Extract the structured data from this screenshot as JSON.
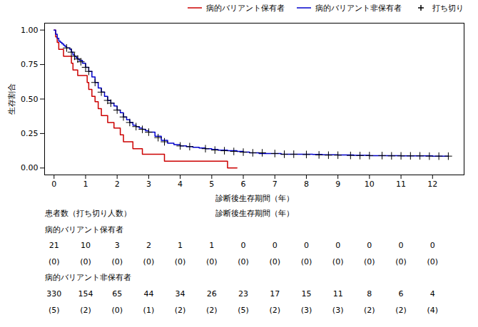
{
  "chart_data": {
    "type": "line",
    "xlabel": "診断後生存期間（年）",
    "ylabel": "生存割合",
    "xlim": [
      -0.3,
      13
    ],
    "ylim": [
      -0.05,
      1.05
    ],
    "xticks": [
      0,
      1,
      2,
      3,
      4,
      5,
      6,
      7,
      8,
      9,
      10,
      11,
      12
    ],
    "yticks": [
      {
        "value": 0.0,
        "label": "0.00"
      },
      {
        "value": 0.25,
        "label": "0.25"
      },
      {
        "value": 0.5,
        "label": "0.50"
      },
      {
        "value": 0.75,
        "label": "0.75"
      },
      {
        "value": 1.0,
        "label": "1.00"
      }
    ],
    "grid": false,
    "legend": "upper right",
    "series": [
      {
        "name": "病的バリアント保有者",
        "type": "line",
        "line_style": "step",
        "color": "#CC0000",
        "x": [
          0,
          0.05,
          0.1,
          0.15,
          0.2,
          0.25,
          0.3,
          0.35,
          0.4,
          0.5,
          0.55,
          0.6,
          0.65,
          0.75,
          0.8,
          0.9,
          1.0,
          1.05,
          1.1,
          1.2,
          1.3,
          1.4,
          1.5,
          1.6,
          1.7,
          1.8,
          1.9,
          2.0,
          2.1,
          2.2,
          2.5,
          2.8,
          3.0,
          3.2,
          3.4,
          3.5,
          4.0,
          4.5,
          5.0,
          5.5,
          5.8
        ],
        "values": [
          1.0,
          0.95,
          0.91,
          0.86,
          0.86,
          0.86,
          0.81,
          0.81,
          0.81,
          0.81,
          0.76,
          0.71,
          0.71,
          0.67,
          0.67,
          0.67,
          0.67,
          0.62,
          0.57,
          0.52,
          0.48,
          0.43,
          0.38,
          0.38,
          0.33,
          0.33,
          0.29,
          0.29,
          0.24,
          0.19,
          0.14,
          0.1,
          0.1,
          0.1,
          0.1,
          0.05,
          0.05,
          0.05,
          0.05,
          0.0,
          0.0
        ]
      },
      {
        "name": "病的バリアント非保有者",
        "type": "line",
        "line_style": "step",
        "color": "#0000CC",
        "x": [
          0,
          0.05,
          0.1,
          0.15,
          0.2,
          0.25,
          0.3,
          0.35,
          0.4,
          0.45,
          0.5,
          0.55,
          0.6,
          0.65,
          0.7,
          0.75,
          0.8,
          0.9,
          1.0,
          1.1,
          1.2,
          1.3,
          1.4,
          1.5,
          1.6,
          1.7,
          1.8,
          1.9,
          2.0,
          2.1,
          2.2,
          2.3,
          2.4,
          2.5,
          2.6,
          2.7,
          2.8,
          2.9,
          3.0,
          3.2,
          3.4,
          3.6,
          3.8,
          4.0,
          4.2,
          4.4,
          4.6,
          4.8,
          5.0,
          5.2,
          5.5,
          5.8,
          6.0,
          6.2,
          6.5,
          7.0,
          7.2,
          7.5,
          8.0,
          8.2,
          8.5,
          9.0,
          9.5,
          10.0,
          10.5,
          11.0,
          11.5,
          12.0,
          12.5
        ],
        "values": [
          1.0,
          0.97,
          0.94,
          0.92,
          0.91,
          0.9,
          0.89,
          0.88,
          0.87,
          0.87,
          0.86,
          0.84,
          0.82,
          0.81,
          0.8,
          0.79,
          0.78,
          0.76,
          0.73,
          0.7,
          0.66,
          0.62,
          0.58,
          0.55,
          0.52,
          0.49,
          0.47,
          0.45,
          0.42,
          0.4,
          0.37,
          0.35,
          0.33,
          0.31,
          0.3,
          0.29,
          0.28,
          0.27,
          0.26,
          0.23,
          0.2,
          0.18,
          0.17,
          0.16,
          0.155,
          0.15,
          0.145,
          0.14,
          0.135,
          0.13,
          0.125,
          0.12,
          0.115,
          0.11,
          0.105,
          0.105,
          0.1,
          0.1,
          0.1,
          0.098,
          0.096,
          0.094,
          0.092,
          0.09,
          0.09,
          0.088,
          0.088,
          0.086,
          0.086
        ]
      },
      {
        "name": "打ち切り",
        "type": "scatter",
        "marker": "+",
        "color": "#000000",
        "x": [
          0.4,
          0.55,
          0.65,
          0.75,
          0.85,
          1.0,
          1.1,
          1.3,
          1.5,
          1.7,
          1.8,
          2.0,
          2.2,
          2.4,
          2.6,
          2.8,
          3.0,
          3.3,
          3.5,
          4.0,
          4.3,
          4.8,
          5.1,
          5.4,
          5.7,
          6.0,
          6.3,
          6.6,
          7.0,
          7.3,
          7.6,
          8.0,
          8.4,
          8.7,
          9.0,
          9.4,
          9.7,
          10.0,
          10.4,
          10.7,
          11.0,
          11.3,
          11.6,
          11.9,
          12.2,
          12.5
        ],
        "values": [
          0.87,
          0.84,
          0.81,
          0.79,
          0.77,
          0.73,
          0.7,
          0.62,
          0.55,
          0.49,
          0.47,
          0.42,
          0.37,
          0.33,
          0.3,
          0.28,
          0.26,
          0.22,
          0.19,
          0.16,
          0.155,
          0.14,
          0.13,
          0.125,
          0.12,
          0.115,
          0.11,
          0.11,
          0.105,
          0.1,
          0.1,
          0.098,
          0.095,
          0.093,
          0.093,
          0.091,
          0.09,
          0.09,
          0.09,
          0.088,
          0.088,
          0.088,
          0.088,
          0.086,
          0.086,
          0.086
        ]
      }
    ],
    "risk_table": {
      "label": "患者数（打ち切り人数）",
      "header": "診断後生存期間（年）",
      "times": [
        0,
        1,
        2,
        3,
        4,
        5,
        6,
        7,
        8,
        9,
        10,
        11,
        12
      ],
      "rows": [
        {
          "name": "病的バリアント保有者",
          "at_risk": [
            21,
            10,
            3,
            2,
            1,
            1,
            0,
            0,
            0,
            0,
            0,
            0,
            0
          ],
          "censored": [
            0,
            0,
            0,
            0,
            0,
            0,
            0,
            0,
            0,
            0,
            0,
            0,
            0
          ],
          "censored_labels": [
            "(0)",
            "(0)",
            "(0)",
            "(0)",
            "(0)",
            "(0)",
            "(0)",
            "(0)",
            "(0)",
            "(0)",
            "(0)",
            "(0)",
            "(0)"
          ]
        },
        {
          "name": "病的バリアント非保有者",
          "at_risk": [
            330,
            154,
            65,
            44,
            34,
            26,
            23,
            17,
            15,
            11,
            8,
            6,
            4
          ],
          "censored": [
            5,
            2,
            0,
            1,
            2,
            2,
            5,
            2,
            3,
            3,
            2,
            2,
            4
          ],
          "censored_labels": [
            "(5)",
            "(2)",
            "(0)",
            "(1)",
            "(2)",
            "(2)",
            "(5)",
            "(2)",
            "(3)",
            "(3)",
            "(2)",
            "(2)",
            "(4)"
          ]
        }
      ]
    }
  }
}
